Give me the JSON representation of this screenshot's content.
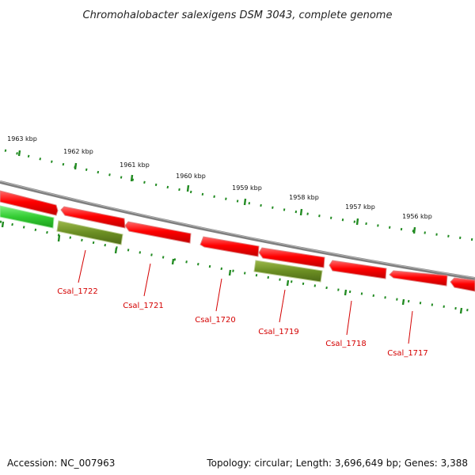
{
  "title": "Chromohalobacter salexigens DSM 3043, complete genome",
  "colors": {
    "forward_gene": "#ff1a1a",
    "reverse_gene": "#ff2020",
    "rna_gene": "#6b8e23",
    "other_gene": "#3fd43f",
    "backbone": "#808080",
    "ticks": "#228b22",
    "gene_label": "#d40000"
  },
  "tick_labels": [
    "1963 kbp",
    "1962 kbp",
    "1961 kbp",
    "1960 kbp",
    "1959 kbp",
    "1958 kbp",
    "1957 kbp",
    "1956 kbp"
  ],
  "gene_labels": [
    "Csal_1722",
    "Csal_1721",
    "Csal_1720",
    "Csal_1719",
    "Csal_1718",
    "Csal_1717"
  ],
  "footer": {
    "accession": "Accession: NC_007963",
    "summary": "Topology: circular; Length: 3,696,649 bp; Genes: 3,388"
  }
}
